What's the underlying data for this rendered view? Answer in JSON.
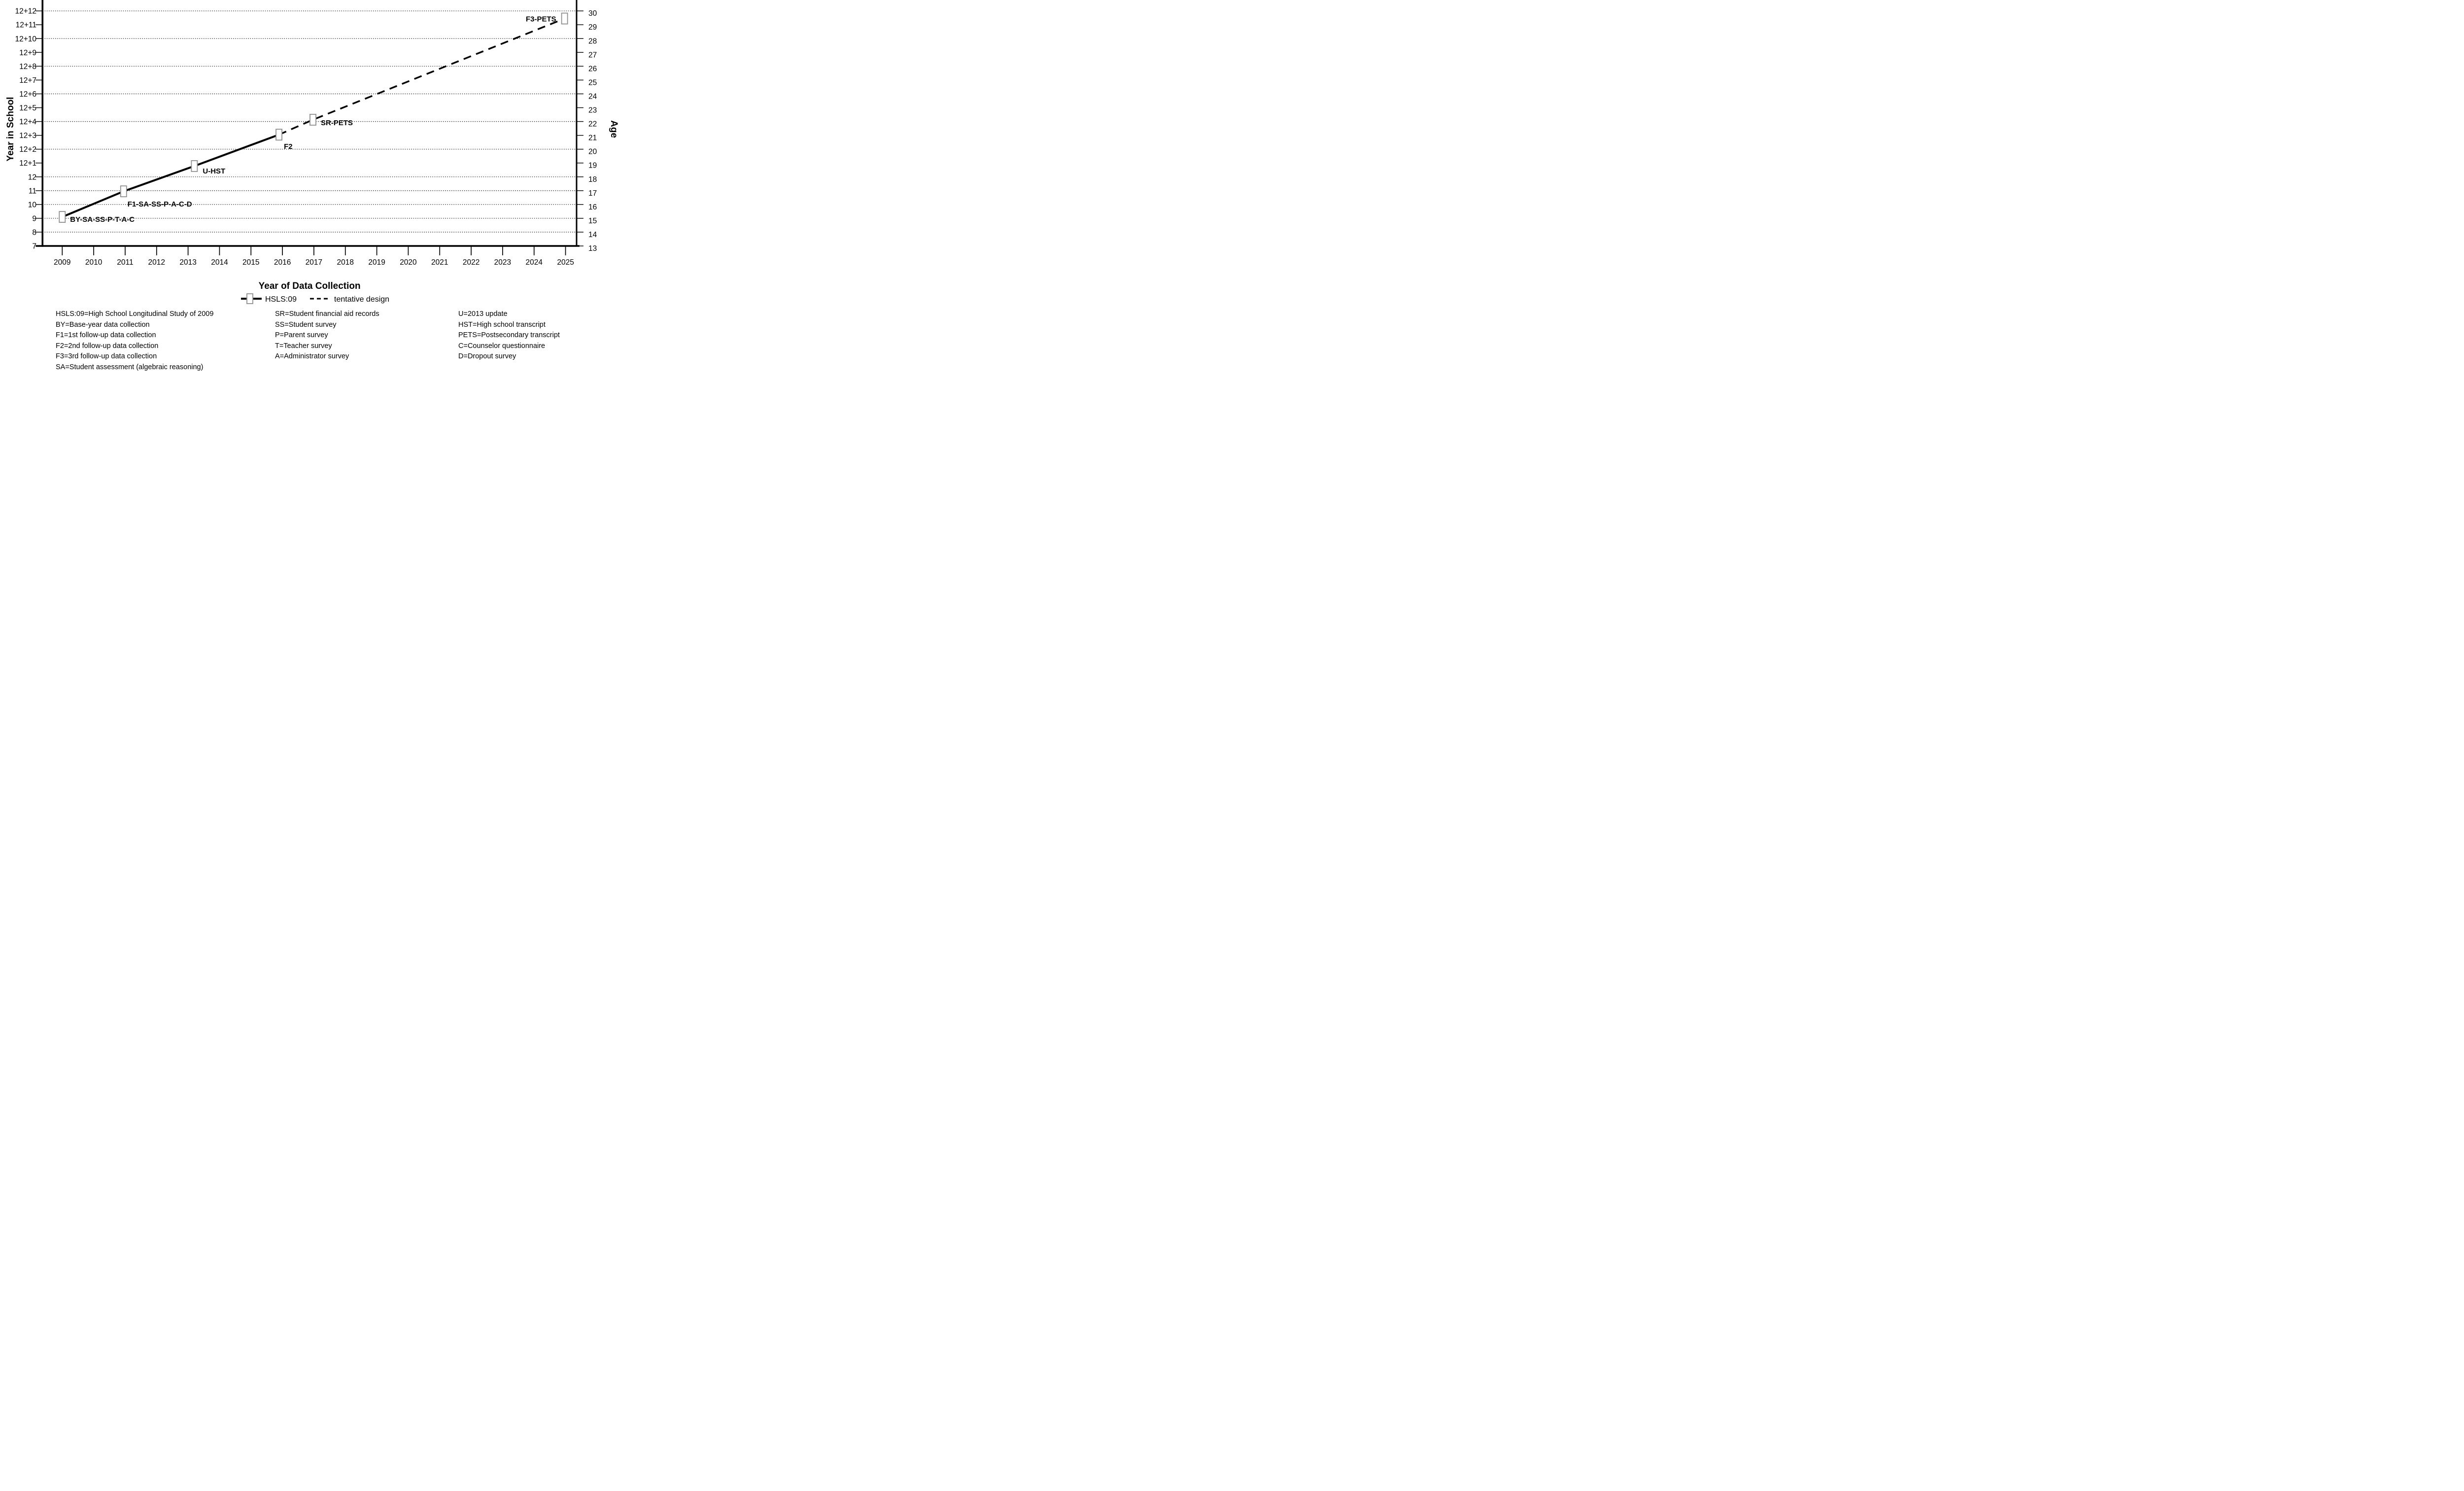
{
  "chart_data": {
    "type": "line",
    "xlabel": "Year of Data Collection",
    "ylabel_left": "Year in School",
    "ylabel_right": "Age",
    "x_tick_labels": [
      "2009",
      "2010",
      "2011",
      "2012",
      "2013",
      "2014",
      "2015",
      "2016",
      "2017",
      "2018",
      "2019",
      "2020",
      "2021",
      "2022",
      "2023",
      "2024",
      "2025"
    ],
    "x_range": [
      2009,
      2025
    ],
    "y_left_labels": [
      "7",
      "8",
      "9",
      "10",
      "11",
      "12",
      "12+1",
      "12+2",
      "12+3",
      "12+4",
      "12+5",
      "12+6",
      "12+7",
      "12+8",
      "12+9",
      "12+10",
      "12+11",
      "12+12"
    ],
    "y_right_labels": [
      "13",
      "14",
      "15",
      "16",
      "17",
      "18",
      "19",
      "20",
      "21",
      "22",
      "23",
      "24",
      "25",
      "26",
      "27",
      "28",
      "29",
      "30"
    ],
    "y_value_range": [
      7,
      24
    ],
    "grid_values": [
      8,
      9,
      10,
      11,
      12,
      14,
      16,
      18,
      20,
      22,
      24
    ],
    "grid_on": true,
    "legend_position": "below-xlabel",
    "series": [
      {
        "name": "HSLS:09",
        "style": "solid",
        "points": [
          {
            "x": 2009.0,
            "v": 9.1,
            "marker": true,
            "label": "BY-SA-SS-P-T-A-C",
            "label_dx": 16,
            "label_dy": 5,
            "label_anchor": "start"
          },
          {
            "x": 2010.95,
            "v": 10.95,
            "marker": true,
            "label": "F1-SA-SS-P-A-C-D",
            "label_dx": 8,
            "label_dy": 26,
            "label_anchor": "start"
          },
          {
            "x": 2013.2,
            "v": 12.78,
            "marker": true,
            "label": "U-HST",
            "label_dx": 17,
            "label_dy": 10,
            "label_anchor": "start"
          },
          {
            "x": 2015.89,
            "v": 15.05,
            "marker": true,
            "label": "F2",
            "label_dx": 10,
            "label_dy": 24,
            "label_anchor": "start"
          }
        ]
      },
      {
        "name": "tentative design",
        "style": "dashed",
        "points": [
          {
            "x": 2015.89,
            "v": 15.05,
            "marker": false
          },
          {
            "x": 2016.97,
            "v": 16.13,
            "marker": true,
            "label": "SR-PETS",
            "label_dx": 16,
            "label_dy": 6,
            "label_anchor": "start"
          },
          {
            "x": 2024.97,
            "v": 23.45,
            "marker": true,
            "label": "F3-PETS",
            "label_dx": -17,
            "label_dy": 1,
            "label_anchor": "end"
          }
        ]
      }
    ],
    "legend": [
      {
        "label": "HSLS:09",
        "style": "solid-marker"
      },
      {
        "label": "tentative design",
        "style": "dashed"
      }
    ]
  },
  "footnotes": {
    "col1": [
      "HSLS:09=High School Longitudinal Study of 2009",
      "BY=Base-year data collection",
      "F1=1st follow-up data collection",
      "F2=2nd follow-up data collection",
      "F3=3rd follow-up data collection",
      "SA=Student assessment (algebraic reasoning)"
    ],
    "col2": [
      "SR=Student financial aid records",
      "SS=Student survey",
      "P=Parent survey",
      "T=Teacher survey",
      "A=Administrator survey"
    ],
    "col3": [
      "U=2013 update",
      "HST=High school transcript",
      "PETS=Postsecondary transcript",
      "C=Counselor questionnaire",
      "D=Dropout survey"
    ]
  },
  "colors": {
    "line": "#000000",
    "marker_fill": "#ffffff",
    "marker_stroke": "#8f8f8f",
    "grid": "#1a1a1a",
    "background": "#ffffff"
  }
}
